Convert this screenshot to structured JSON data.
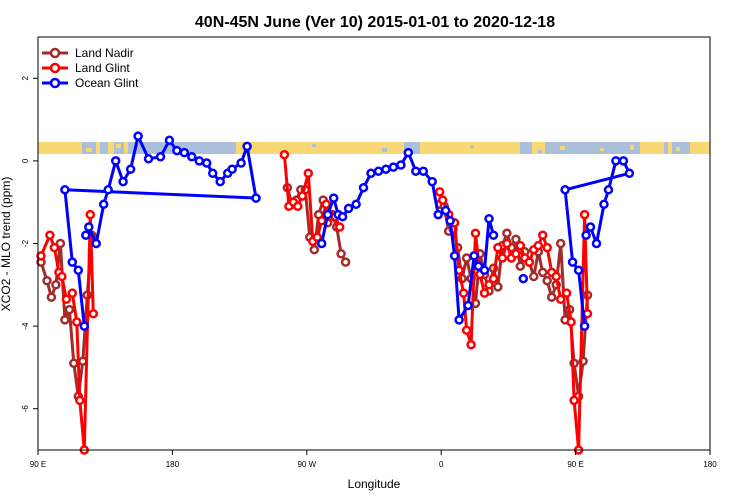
{
  "chart_data": {
    "type": "line",
    "title": "40N-45N June (Ver 10)   2015-01-01 to 2020-12-18",
    "xlabel": "Longitude",
    "ylabel": "XCO2 - MLO trend (ppm)",
    "xlim": [
      90,
      540
    ],
    "ylim": [
      -7,
      3
    ],
    "x_ticks": [
      {
        "value": 90,
        "label": "90 E"
      },
      {
        "value": 180,
        "label": "180"
      },
      {
        "value": 270,
        "label": "90 W"
      },
      {
        "value": 360,
        "label": "0"
      },
      {
        "value": 450,
        "label": "90 E"
      },
      {
        "value": 540,
        "label": "180"
      }
    ],
    "y_ticks": [
      {
        "value": 2,
        "label": "2"
      },
      {
        "value": 0,
        "label": "0"
      },
      {
        "value": -2,
        "label": "-2"
      },
      {
        "value": -4,
        "label": "-4"
      },
      {
        "value": -6,
        "label": "-6"
      }
    ],
    "grid": false,
    "legend_position": "top-left",
    "series": [
      {
        "name": "Land Nadir",
        "color": "#a52a2a",
        "segments": [
          [
            [
              92,
              -2.45
            ],
            [
              96,
              -2.9
            ],
            [
              99,
              -3.3
            ],
            [
              102,
              -3.0
            ],
            [
              105,
              -2.0
            ],
            [
              108,
              -3.85
            ],
            [
              111,
              -3.6
            ],
            [
              114,
              -4.9
            ],
            [
              117,
              -5.7
            ],
            [
              120,
              -4.85
            ],
            [
              123,
              -3.25
            ],
            [
              126,
              -1.8
            ]
          ],
          [
            [
              257,
              -0.65
            ],
            [
              260,
              -1.05
            ],
            [
              263,
              -0.95
            ],
            [
              266,
              -0.7
            ],
            [
              269,
              -0.7
            ],
            [
              272,
              -1.85
            ],
            [
              275,
              -2.15
            ],
            [
              278,
              -1.3
            ],
            [
              281,
              -0.95
            ],
            [
              284,
              -1.5
            ],
            [
              287,
              -1.3
            ],
            [
              290,
              -1.6
            ],
            [
              293,
              -2.25
            ],
            [
              296,
              -2.45
            ]
          ],
          [
            [
              359,
              -1.05
            ],
            [
              362,
              -1.1
            ],
            [
              365,
              -1.7
            ],
            [
              368,
              -1.65
            ],
            [
              371,
              -2.1
            ],
            [
              374,
              -2.85
            ],
            [
              377,
              -2.35
            ],
            [
              380,
              -2.85
            ],
            [
              383,
              -3.45
            ],
            [
              386,
              -2.25
            ],
            [
              389,
              -2.75
            ],
            [
              392,
              -3.15
            ],
            [
              395,
              -2.6
            ],
            [
              398,
              -3.05
            ],
            [
              401,
              -2.05
            ],
            [
              404,
              -1.75
            ],
            [
              407,
              -2.1
            ],
            [
              410,
              -1.9
            ],
            [
              413,
              -2.55
            ],
            [
              416,
              -2.2
            ],
            [
              419,
              -2.45
            ],
            [
              422,
              -2.8
            ],
            [
              425,
              -2.2
            ],
            [
              428,
              -2.7
            ],
            [
              431,
              -2.9
            ],
            [
              434,
              -3.3
            ],
            [
              437,
              -3.0
            ],
            [
              440,
              -2.0
            ],
            [
              443,
              -3.85
            ],
            [
              446,
              -3.6
            ],
            [
              449,
              -4.9
            ],
            [
              452,
              -5.7
            ],
            [
              455,
              -4.85
            ],
            [
              458,
              -3.25
            ]
          ]
        ]
      },
      {
        "name": "Land Glint",
        "color": "#ff0000",
        "segments": [
          [
            [
              92,
              -2.3
            ],
            [
              98,
              -1.8
            ],
            [
              101,
              -2.1
            ],
            [
              104,
              -2.7
            ],
            [
              106,
              -2.8
            ],
            [
              109,
              -3.35
            ],
            [
              113,
              -3.2
            ],
            [
              116,
              -3.9
            ],
            [
              118,
              -5.8
            ],
            [
              121,
              -7.0
            ],
            [
              125,
              -1.3
            ],
            [
              127,
              -3.7
            ]
          ],
          [
            [
              255,
              0.15
            ],
            [
              258,
              -1.1
            ],
            [
              261,
              -1.0
            ],
            [
              264,
              -1.1
            ],
            [
              267,
              -0.85
            ],
            [
              271,
              -0.3
            ],
            [
              274,
              -1.95
            ],
            [
              277,
              -1.85
            ],
            [
              280,
              -1.45
            ],
            [
              283,
              -1.05
            ],
            [
              286,
              -1.35
            ],
            [
              289,
              -1.35
            ],
            [
              292,
              -1.6
            ]
          ],
          [
            [
              359,
              -0.75
            ],
            [
              361,
              -0.95
            ],
            [
              365,
              -1.3
            ],
            [
              369,
              -1.5
            ],
            [
              372,
              -2.65
            ],
            [
              375,
              -3.2
            ],
            [
              377,
              -4.1
            ],
            [
              380,
              -4.45
            ],
            [
              383,
              -1.75
            ],
            [
              386,
              -2.75
            ],
            [
              389,
              -3.2
            ],
            [
              392,
              -3.0
            ],
            [
              395,
              -2.85
            ],
            [
              398,
              -2.1
            ],
            [
              401,
              -2.35
            ],
            [
              404,
              -2.0
            ],
            [
              407,
              -2.35
            ],
            [
              410,
              -2.25
            ],
            [
              413,
              -2.05
            ],
            [
              416,
              -2.35
            ],
            [
              419,
              -2.45
            ],
            [
              422,
              -2.15
            ],
            [
              425,
              -2.05
            ],
            [
              428,
              -1.8
            ],
            [
              431,
              -2.1
            ],
            [
              434,
              -2.7
            ],
            [
              437,
              -2.8
            ],
            [
              440,
              -3.35
            ],
            [
              444,
              -3.2
            ],
            [
              447,
              -3.9
            ],
            [
              449,
              -5.8
            ],
            [
              452,
              -7.0
            ],
            [
              456,
              -1.3
            ],
            [
              458,
              -3.7
            ]
          ]
        ]
      },
      {
        "name": "Ocean Glint",
        "color": "#0000ff",
        "segments": [
          [
            [
              122,
              -1.8
            ],
            [
              124,
              -1.6
            ],
            [
              129,
              -2.0
            ],
            [
              134,
              -1.05
            ],
            [
              137,
              -0.7
            ],
            [
              142,
              0.0
            ],
            [
              147,
              -0.5
            ],
            [
              152,
              -0.2
            ],
            [
              157,
              0.6
            ],
            [
              164,
              0.05
            ],
            [
              172,
              0.1
            ],
            [
              178,
              0.5
            ],
            [
              183,
              0.25
            ],
            [
              188,
              0.2
            ],
            [
              193,
              0.1
            ],
            [
              198,
              0.0
            ],
            [
              203,
              -0.05
            ],
            [
              207,
              -0.3
            ],
            [
              212,
              -0.5
            ],
            [
              217,
              -0.3
            ],
            [
              220,
              -0.2
            ],
            [
              226,
              -0.05
            ],
            [
              230,
              0.35
            ],
            [
              236,
              -0.9
            ],
            [
              108,
              -0.7
            ],
            [
              113,
              -2.45
            ],
            [
              117,
              -2.65
            ],
            [
              121,
              -4.0
            ]
          ],
          [
            [
              280,
              -2.0
            ],
            [
              284,
              -1.3
            ],
            [
              288,
              -0.9
            ],
            [
              291,
              -1.3
            ],
            [
              294,
              -1.35
            ],
            [
              298,
              -1.15
            ],
            [
              303,
              -1.05
            ],
            [
              308,
              -0.65
            ],
            [
              313,
              -0.3
            ],
            [
              318,
              -0.25
            ],
            [
              323,
              -0.2
            ],
            [
              328,
              -0.15
            ],
            [
              333,
              -0.1
            ],
            [
              338,
              0.2
            ],
            [
              343,
              -0.25
            ],
            [
              348,
              -0.25
            ],
            [
              354,
              -0.5
            ],
            [
              358,
              -1.3
            ],
            [
              363,
              -1.2
            ],
            [
              366,
              -1.45
            ],
            [
              369,
              -2.3
            ],
            [
              372,
              -3.85
            ],
            [
              378,
              -3.5
            ],
            [
              382,
              -2.3
            ],
            [
              385,
              -2.55
            ],
            [
              389,
              -2.65
            ],
            [
              392,
              -1.4
            ],
            [
              395,
              -1.8
            ]
          ],
          [
            [
              415,
              -2.85
            ]
          ],
          [
            [
              457,
              -1.8
            ],
            [
              460,
              -1.6
            ],
            [
              464,
              -2.0
            ],
            [
              469,
              -1.05
            ],
            [
              472,
              -0.7
            ],
            [
              477,
              0.0
            ],
            [
              482,
              0.0
            ],
            [
              486,
              -0.3
            ],
            [
              443,
              -0.7
            ],
            [
              448,
              -2.45
            ],
            [
              452,
              -2.65
            ],
            [
              456,
              -4.0
            ]
          ]
        ]
      }
    ]
  }
}
